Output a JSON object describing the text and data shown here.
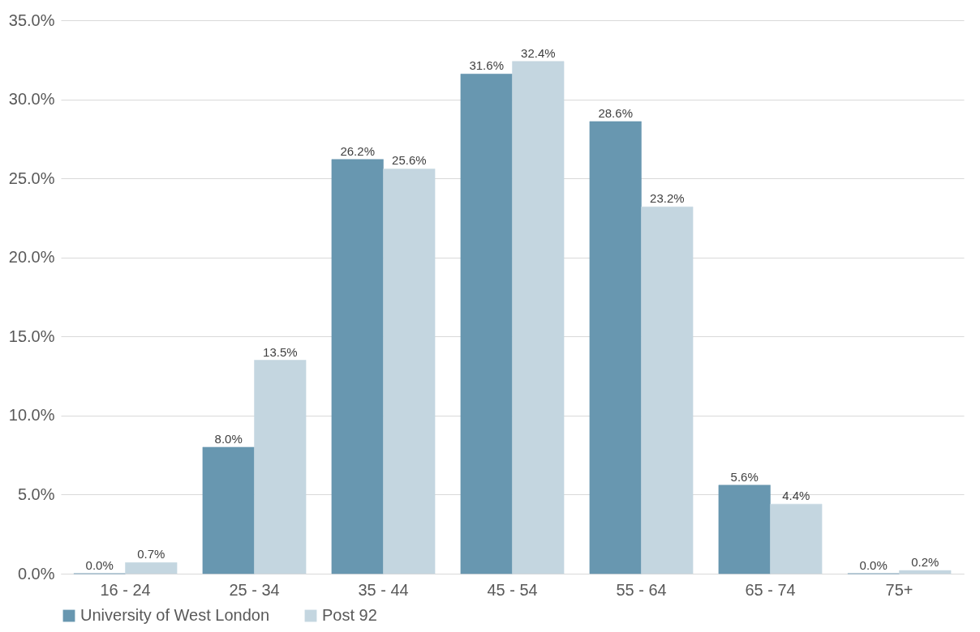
{
  "chart_data": {
    "type": "bar",
    "categories": [
      "16 - 24",
      "25 - 34",
      "35 - 44",
      "45 - 54",
      "55 - 64",
      "65 - 74",
      "75+"
    ],
    "series": [
      {
        "name": "University of West London",
        "color": "#6897b0",
        "values": [
          0.0,
          8.0,
          26.2,
          31.6,
          28.6,
          5.6,
          0.0
        ],
        "value_labels": [
          "0.0%",
          "8.0%",
          "26.2%",
          "31.6%",
          "28.6%",
          "5.6%",
          "0.0%"
        ]
      },
      {
        "name": "Post 92",
        "color": "#c4d6e0",
        "values": [
          0.7,
          13.5,
          25.6,
          32.4,
          23.2,
          4.4,
          0.2
        ],
        "value_labels": [
          "0.7%",
          "13.5%",
          "25.6%",
          "32.4%",
          "23.2%",
          "4.4%",
          "0.2%"
        ]
      }
    ],
    "ylim": [
      0,
      35
    ],
    "yticks": [
      {
        "value": 0,
        "label": "0.0%"
      },
      {
        "value": 5,
        "label": "5.0%"
      },
      {
        "value": 10,
        "label": "10.0%"
      },
      {
        "value": 15,
        "label": "15.0%"
      },
      {
        "value": 20,
        "label": "20.0%"
      },
      {
        "value": 25,
        "label": "25.0%"
      },
      {
        "value": 30,
        "label": "30.0%"
      },
      {
        "value": 35,
        "label": "35.0%"
      }
    ],
    "grid": "y",
    "legend": "bottom"
  }
}
